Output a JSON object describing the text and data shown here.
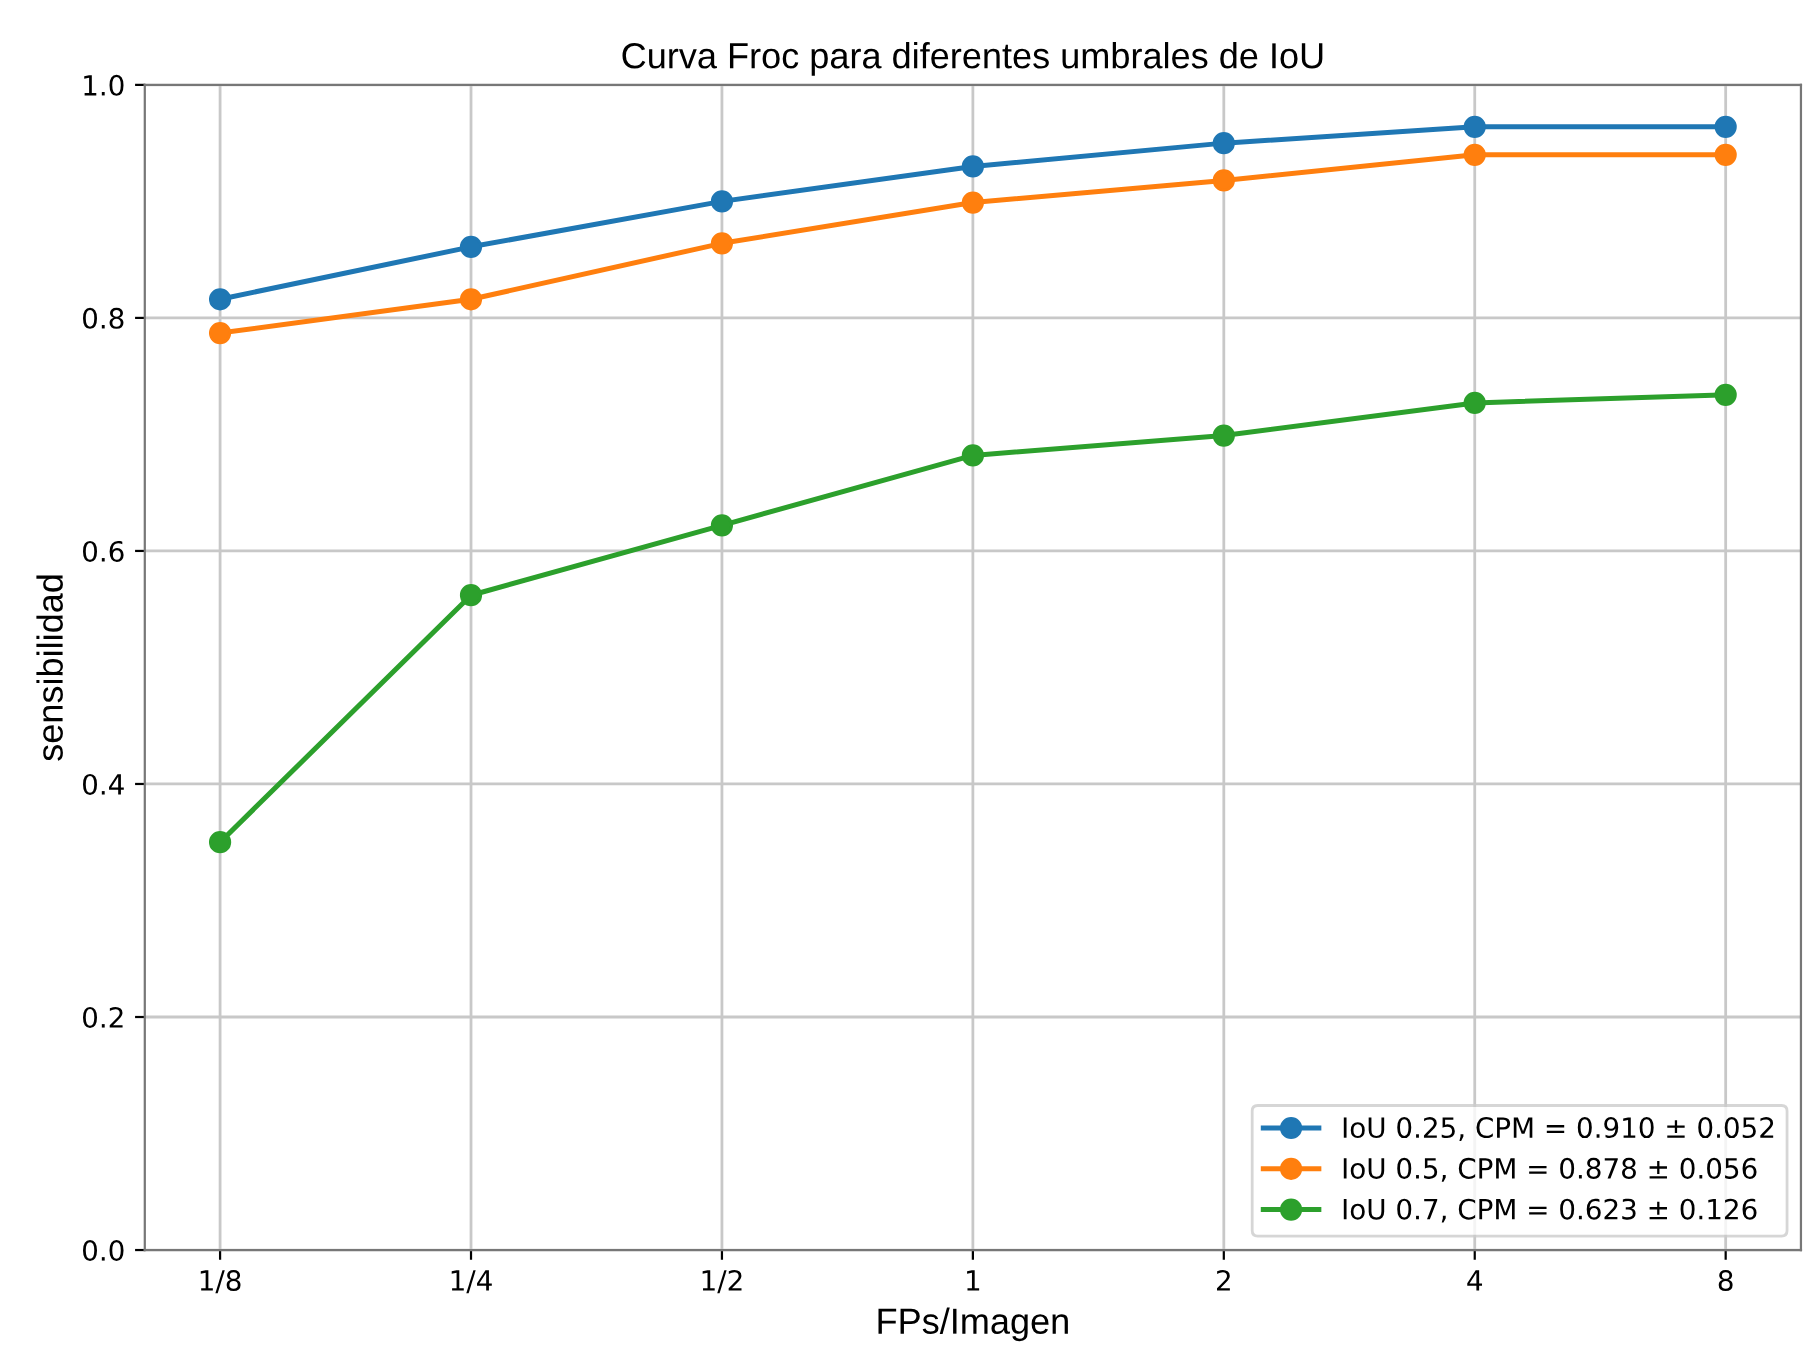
{
  "chart_data": {
    "type": "line",
    "title": "Curva Froc para diferentes umbrales de IoU",
    "xlabel": "FPs/Imagen",
    "ylabel": "sensibilidad",
    "categories": [
      "1/8",
      "1/4",
      "1/2",
      "1",
      "2",
      "4",
      "8"
    ],
    "series": [
      {
        "name": "IoU 0.25, CPM = 0.910 ± 0.052",
        "color": "#1f77b4",
        "values": [
          0.816,
          0.861,
          0.9,
          0.93,
          0.95,
          0.964,
          0.964
        ]
      },
      {
        "name": "IoU 0.5, CPM = 0.878 ± 0.056",
        "color": "#ff7f0e",
        "values": [
          0.787,
          0.816,
          0.864,
          0.899,
          0.918,
          0.94,
          0.94
        ]
      },
      {
        "name": "IoU 0.7, CPM = 0.623 ± 0.126",
        "color": "#2ca02c",
        "values": [
          0.35,
          0.562,
          0.622,
          0.682,
          0.699,
          0.727,
          0.734
        ]
      }
    ],
    "ylim": [
      0.0,
      1.0
    ],
    "yticks": [
      {
        "value": 0.0,
        "label": "0.0"
      },
      {
        "value": 0.2,
        "label": "0.2"
      },
      {
        "value": 0.4,
        "label": "0.4"
      },
      {
        "value": 0.6,
        "label": "0.6"
      },
      {
        "value": 0.8,
        "label": "0.8"
      },
      {
        "value": 1.0,
        "label": "1.0"
      }
    ],
    "grid": true,
    "legend": "bottom right",
    "marker": "circle",
    "line_style": "solid"
  }
}
